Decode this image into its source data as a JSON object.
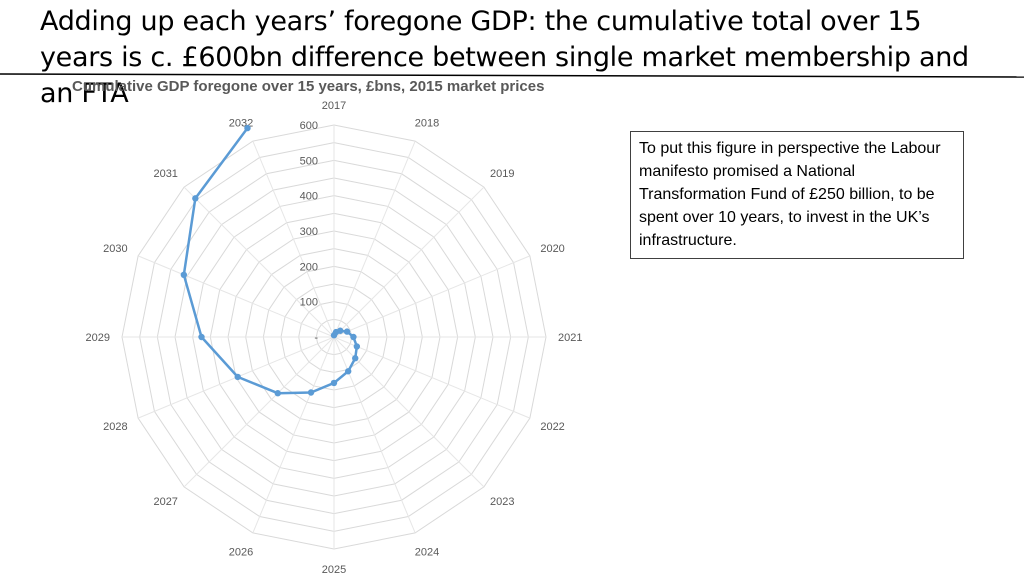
{
  "slide": {
    "title": "Adding up each years’ foregone GDP: the cumulative total over 15 years is c. £600bn difference between single market membership and an FTA",
    "callout": "To put this figure in perspective the Labour manifesto promised a National Transformation Fund of £250 billion, to be spent over 10 years, to invest in the UK’s infrastructure."
  },
  "chart_data": {
    "type": "radar",
    "title": "Cumulative GDP foregone over 15 years, £bns, 2015 market prices",
    "categories": [
      "2017",
      "2018",
      "2019",
      "2020",
      "2021",
      "2022",
      "2023",
      "2024",
      "2025",
      "2026",
      "2027",
      "2028",
      "2029",
      "2030",
      "2031",
      "2032"
    ],
    "tick_values": [
      0,
      100,
      200,
      300,
      400,
      500,
      600
    ],
    "tick_labels": [
      "-",
      "100",
      "200",
      "300",
      "400",
      "500",
      "600"
    ],
    "rmax": 600,
    "grid": true,
    "series": [
      {
        "values": [
          5,
          15,
          25,
          40,
          55,
          70,
          85,
          105,
          130,
          170,
          225,
          295,
          375,
          460,
          555,
          640
        ],
        "color": "#5b9bd5"
      }
    ]
  }
}
